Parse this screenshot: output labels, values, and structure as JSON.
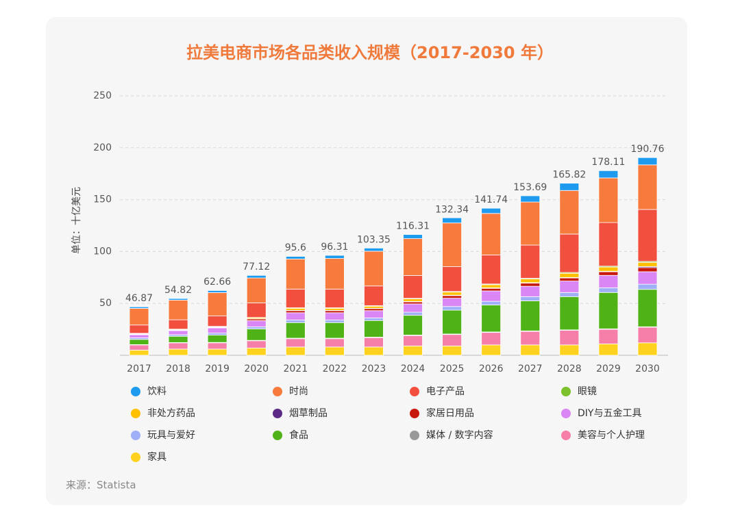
{
  "chart_data": {
    "type": "stacked_bar",
    "title": "拉美电商市场各品类收入规模（2017-2030 年）",
    "y_label": "单位：十亿美元",
    "source": "来源：Statista",
    "categories": [
      "2017",
      "2018",
      "2019",
      "2020",
      "2021",
      "2022",
      "2023",
      "2024",
      "2025",
      "2026",
      "2027",
      "2028",
      "2029",
      "2030"
    ],
    "totals": [
      46.87,
      54.82,
      62.66,
      77.12,
      95.6,
      96.31,
      103.35,
      116.31,
      132.34,
      141.74,
      153.69,
      165.82,
      178.11,
      190.76
    ],
    "ylim": [
      0,
      250
    ],
    "yticks": [
      50,
      100,
      150,
      200,
      250
    ],
    "grid": true,
    "series": [
      {
        "name": "饮料",
        "color": "#1e9bef",
        "values": [
          1.5,
          1.5,
          2,
          2.5,
          2.5,
          3,
          3,
          4,
          5,
          5,
          6,
          7,
          7,
          7
        ]
      },
      {
        "name": "时尚",
        "color": "#f77b3c",
        "values": [
          16,
          19,
          22.5,
          24,
          29,
          29.5,
          33.5,
          35.5,
          42,
          40,
          41.5,
          42,
          43,
          43
        ]
      },
      {
        "name": "电子产品",
        "color": "#f2503f",
        "values": [
          8,
          9,
          10,
          14,
          18,
          18,
          19,
          22,
          24,
          28,
          32,
          37,
          42,
          50
        ]
      },
      {
        "name": "眼镜",
        "color": "#7cc02c",
        "values": [
          0.2,
          0.2,
          0.3,
          0.3,
          0.5,
          0.5,
          0.5,
          0.5,
          0.6,
          0.7,
          0.7,
          0.8,
          0.9,
          1
        ]
      },
      {
        "name": "非处方药品",
        "color": "#ffc000",
        "values": [
          0.5,
          0.5,
          0.5,
          1,
          2,
          2,
          2,
          2.5,
          3,
          3,
          3.5,
          4,
          4,
          4
        ]
      },
      {
        "name": "烟草制品",
        "color": "#5b2a86",
        "values": [
          0.2,
          0.2,
          0.2,
          0.3,
          0.3,
          0.3,
          0.3,
          0.4,
          0.4,
          0.5,
          0.5,
          0.5,
          0.5,
          1
        ]
      },
      {
        "name": "家居日用品",
        "color": "#c8190e",
        "values": [
          0.5,
          0.5,
          0.5,
          1.5,
          2,
          2,
          2,
          2,
          2.5,
          2.5,
          3,
          3,
          3.5,
          4
        ]
      },
      {
        "name": "DIY与五金工具",
        "color": "#da86f5",
        "values": [
          3,
          4,
          5,
          6,
          7,
          7,
          7,
          8,
          8,
          10,
          10,
          11,
          12,
          12
        ]
      },
      {
        "name": "玩具与爱好",
        "color": "#9fb0f8",
        "values": [
          1.5,
          1.5,
          2,
          2,
          2.5,
          2.5,
          2.5,
          3,
          3.5,
          3.5,
          4,
          4,
          4.5,
          5
        ]
      },
      {
        "name": "食品",
        "color": "#4fb317",
        "values": [
          5,
          6,
          7,
          11,
          15,
          15,
          16,
          19,
          23,
          26,
          29,
          32,
          35,
          36
        ]
      },
      {
        "name": "媒体 / 数字内容",
        "color": "#999999",
        "values": [
          0.3,
          0.3,
          0.4,
          0.4,
          0.5,
          0.5,
          0.5,
          0.5,
          0.5,
          0.5,
          0.5,
          0.5,
          0.5,
          0.5
        ]
      },
      {
        "name": "美容与个人护理",
        "color": "#f57fa8",
        "values": [
          5,
          6,
          6,
          7,
          8,
          8,
          9,
          10,
          11,
          12,
          13,
          14,
          14,
          15
        ]
      },
      {
        "name": "家具",
        "color": "#ffd21f",
        "values": [
          5,
          6,
          6,
          7,
          8,
          8,
          8,
          9,
          9,
          10,
          10,
          10,
          11,
          12
        ]
      }
    ]
  }
}
